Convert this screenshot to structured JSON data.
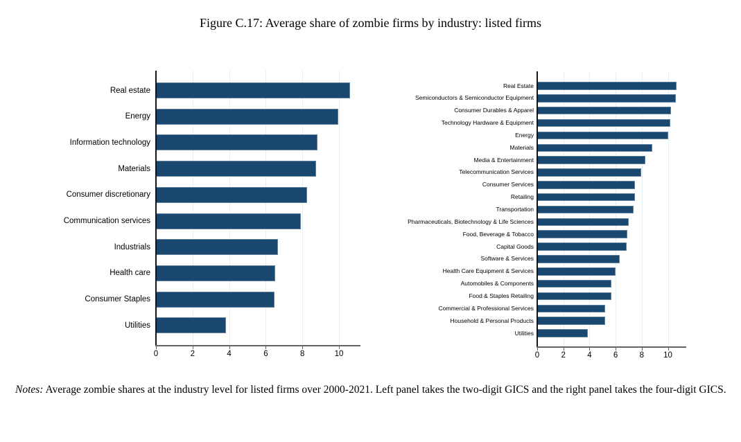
{
  "title": "Figure C.17: Average share of zombie firms by industry: listed firms",
  "notes": {
    "label": "Notes:",
    "text": "Average zombie shares at the industry level for listed firms over 2000-2021. Left panel takes the two-digit GICS and the right panel takes the four-digit GICS."
  },
  "colors": {
    "bar": "#1a476f",
    "grid": "#e5eff2",
    "axis": "#636363",
    "y_axis": "#141414"
  },
  "chart_data": [
    {
      "type": "bar",
      "orientation": "horizontal",
      "panel": "left",
      "title": "",
      "xlabel": "",
      "ylabel": "",
      "xlim": [
        0,
        11.2
      ],
      "xticks": [
        0,
        2,
        4,
        6,
        8,
        10
      ],
      "grid": true,
      "legend": false,
      "categories": [
        "Real estate",
        "Energy",
        "Information technology",
        "Materials",
        "Consumer discretionary",
        "Communication services",
        "Industrials",
        "Health care",
        "Consumer Staples",
        "Utilities"
      ],
      "values": [
        10.6,
        9.97,
        8.81,
        8.75,
        8.25,
        7.92,
        6.67,
        6.53,
        6.48,
        3.84
      ]
    },
    {
      "type": "bar",
      "orientation": "horizontal",
      "panel": "right",
      "title": "",
      "xlabel": "",
      "ylabel": "",
      "xlim": [
        0,
        11.4
      ],
      "xticks": [
        0,
        2,
        4,
        6,
        8,
        10
      ],
      "grid": true,
      "legend": false,
      "categories": [
        "Real Estate",
        "Semiconductors & Semiconductor Equipment",
        "Consumer Durables & Apparel",
        "Technology Hardware & Equipment",
        "Energy",
        "Materials",
        "Media & Entertainment",
        "Telecommunication Services",
        "Consumer Services",
        "Retailing",
        "Transportation",
        "Pharmaceuticals, Biotechnology & Life Sciences",
        "Food, Beverage & Tobacco",
        "Capital Goods",
        "Software & Services",
        "Health Care Equipment & Services",
        "Automobiles & Components",
        "Food & Staples Retailing",
        "Commercial & Professional Services",
        "Household & Personal Products",
        "Utilities"
      ],
      "values": [
        10.67,
        10.62,
        10.23,
        10.2,
        10.0,
        8.82,
        8.25,
        7.97,
        7.5,
        7.47,
        7.37,
        7.02,
        6.91,
        6.87,
        6.31,
        6.0,
        5.7,
        5.67,
        5.22,
        5.18,
        3.87
      ]
    }
  ]
}
